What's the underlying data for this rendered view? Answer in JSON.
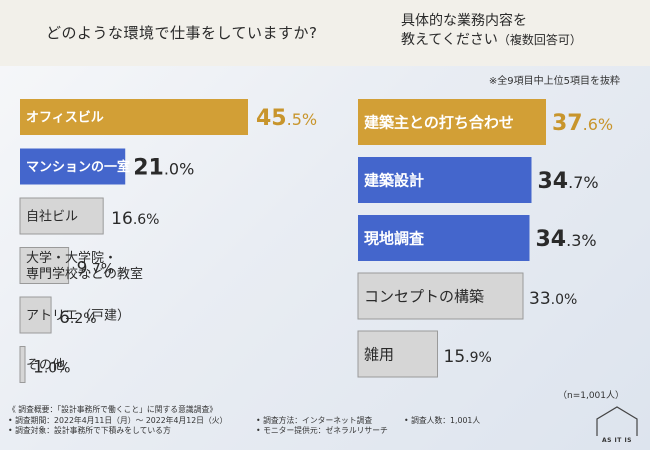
{
  "header": {
    "q1": "どのような環境で仕事をしていますか?",
    "q2_line1": "具体的な業務内容を",
    "q2_line2": "教えてください",
    "q2_line2_sub": "（複数回答可）"
  },
  "note": "※全9項目中上位5項目を抜粋",
  "n_note": "（n=1,001人）",
  "footer": {
    "title": "《 調査概要：「設計事務所で働くこと」に関する意識調査》",
    "period": "• 調査期間：2022年4月11日（月）～ 2022年4月12日（火）",
    "method": "• 調査方法：インターネット調査",
    "count": "• 調査人数：1,001人",
    "target": "• 調査対象：設計事務所で下積みをしている方",
    "provider": "• モニター提供元：ゼネラルリサーチ"
  },
  "logo": {
    "text": "AS IT IS"
  },
  "colors": {
    "gold": "#d29f36",
    "blue": "#4466cc",
    "gray": "#d6d6d6",
    "gray_border": "#9a9a9a"
  },
  "chart_data": [
    {
      "type": "bar",
      "orientation": "horizontal",
      "categories": [
        "オフィスビル",
        "マンションの一室",
        "自社ビル",
        "大学・大学院・専門学校などの教室",
        "アトリエ（戸建）",
        "その他"
      ],
      "labels": [
        [
          "オフィスビル"
        ],
        [
          "マンションの一室"
        ],
        [
          "自社ビル"
        ],
        [
          "大学・大学院・",
          "専門学校などの教室"
        ],
        [
          "アトリエ（戸建）"
        ],
        [
          "その他"
        ]
      ],
      "values": [
        45.5,
        21.0,
        16.6,
        9.7,
        6.2,
        1.0
      ],
      "value_int": [
        "45",
        "21",
        "16",
        "9",
        "6",
        "1"
      ],
      "value_dec": [
        ".5%",
        ".0%",
        ".6%",
        ".7%",
        ".2%",
        ".0%"
      ],
      "highlight": [
        "gold",
        "blue",
        "gray",
        "gray",
        "gray",
        "gray"
      ],
      "xlim": [
        0,
        45.5
      ]
    },
    {
      "type": "bar",
      "orientation": "horizontal",
      "categories": [
        "建築主との打ち合わせ",
        "建築設計",
        "現地調査",
        "コンセプトの構築",
        "雑用"
      ],
      "labels": [
        [
          "建築主との打ち合わせ"
        ],
        [
          "建築設計"
        ],
        [
          "現地調査"
        ],
        [
          "コンセプトの構築"
        ],
        [
          "雑用"
        ]
      ],
      "values": [
        37.6,
        34.7,
        34.3,
        33.0,
        15.9
      ],
      "value_int": [
        "37",
        "34",
        "34",
        "33",
        "15"
      ],
      "value_dec": [
        ".6%",
        ".7%",
        ".3%",
        ".0%",
        ".9%"
      ],
      "highlight": [
        "gold",
        "blue",
        "blue",
        "gray",
        "gray"
      ],
      "xlim": [
        0,
        37.6
      ]
    }
  ]
}
